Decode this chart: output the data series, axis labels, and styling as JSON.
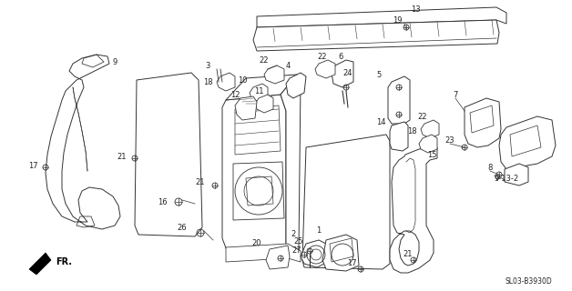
{
  "bg_color": "#ffffff",
  "line_color": "#333333",
  "text_color": "#222222",
  "diagram_code": "SL03-B3930D",
  "fr_label": "FR."
}
